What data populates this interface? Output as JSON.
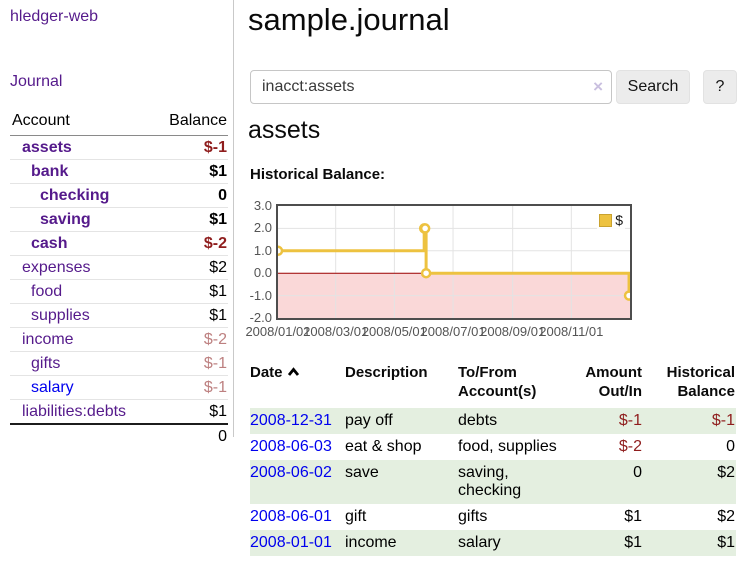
{
  "sidebar": {
    "brand": "hledger-web",
    "nav": [
      {
        "label": "Journal"
      }
    ],
    "accounts_table": {
      "headers": [
        "Account",
        "Balance"
      ],
      "rows": [
        {
          "name": "assets",
          "balance": "$-1",
          "level": 1,
          "bold": true,
          "balance_class": "neg"
        },
        {
          "name": "bank",
          "balance": "$1",
          "level": 2,
          "bold": true,
          "balance_class": ""
        },
        {
          "name": "checking",
          "balance": "0",
          "level": 3,
          "bold": true,
          "balance_class": ""
        },
        {
          "name": "saving",
          "balance": "$1",
          "level": 3,
          "bold": true,
          "balance_class": ""
        },
        {
          "name": "cash",
          "balance": "$-2",
          "level": 2,
          "bold": true,
          "balance_class": "neg"
        },
        {
          "name": "expenses",
          "balance": "$2",
          "level": 1,
          "bold": false,
          "balance_class": ""
        },
        {
          "name": "food",
          "balance": "$1",
          "level": 2,
          "bold": false,
          "balance_class": ""
        },
        {
          "name": "supplies",
          "balance": "$1",
          "level": 2,
          "bold": false,
          "balance_class": ""
        },
        {
          "name": "income",
          "balance": "$-2",
          "level": 1,
          "bold": false,
          "balance_class": "neg-muted"
        },
        {
          "name": "gifts",
          "balance": "$-1",
          "level": 2,
          "bold": false,
          "balance_class": "neg-muted"
        },
        {
          "name": "salary",
          "balance": "$-1",
          "level": 2,
          "bold": false,
          "balance_class": "neg-muted",
          "name_class": "blue"
        },
        {
          "name": "liabilities:debts",
          "balance": "$1",
          "level": 1,
          "bold": false,
          "balance_class": ""
        }
      ],
      "total": "0"
    }
  },
  "header": {
    "title": "sample.journal"
  },
  "search": {
    "value": "inacct:assets",
    "clear_icon": "×",
    "button_label": "Search",
    "help_label": "?"
  },
  "account_page": {
    "title": "assets",
    "chart_label": "Historical Balance:"
  },
  "chart_data": {
    "type": "line",
    "step": true,
    "title": "Historical Balance",
    "series": [
      {
        "name": "$",
        "color": "#edc240",
        "points": [
          [
            "2008-01-01",
            1
          ],
          [
            "2008-06-01",
            2
          ],
          [
            "2008-06-02",
            2
          ],
          [
            "2008-06-03",
            0
          ],
          [
            "2008-12-31",
            -1
          ]
        ]
      }
    ],
    "ylim": [
      -2,
      3
    ],
    "yticks": [
      "3.0",
      "2.0",
      "1.0",
      "0.0",
      "-1.0",
      "-2.0"
    ],
    "xlim": [
      "2008-01-01",
      "2009-01-01"
    ],
    "xticks": [
      "2008/01/01",
      "2008/03/01",
      "2008/05/01",
      "2008/07/01",
      "2008/09/01",
      "2008/11/01"
    ],
    "legend": {
      "label": "$",
      "position": "top-right"
    },
    "grid": true,
    "grid_color": "#e3e3e3",
    "negative_region_color": "#fad8d8",
    "zero_line_color": "#990000"
  },
  "register": {
    "headers": {
      "date": "Date",
      "sort_icon": "chevron-up",
      "description": "Description",
      "tofrom_1": "To/From",
      "tofrom_2": "Account(s)",
      "amount_1": "Amount",
      "amount_2": "Out/In",
      "balance_1": "Historical",
      "balance_2": "Balance"
    },
    "rows": [
      {
        "date": "2008-12-31",
        "description": "pay off",
        "accounts": "debts",
        "amount": "$-1",
        "amount_negative": true,
        "balance": "$-1",
        "balance_negative": true
      },
      {
        "date": "2008-06-03",
        "description": "eat & shop",
        "accounts": "food, supplies",
        "amount": "$-2",
        "amount_negative": true,
        "balance": "0",
        "balance_negative": false
      },
      {
        "date": "2008-06-02",
        "description": "save",
        "accounts": "saving, checking",
        "amount": "0",
        "amount_negative": false,
        "balance": "$2",
        "balance_negative": false
      },
      {
        "date": "2008-06-01",
        "description": "gift",
        "accounts": "gifts",
        "amount": "$1",
        "amount_negative": false,
        "balance": "$2",
        "balance_negative": false
      },
      {
        "date": "2008-01-01",
        "description": "income",
        "accounts": "salary",
        "amount": "$1",
        "amount_negative": false,
        "balance": "$1",
        "balance_negative": false
      }
    ]
  }
}
